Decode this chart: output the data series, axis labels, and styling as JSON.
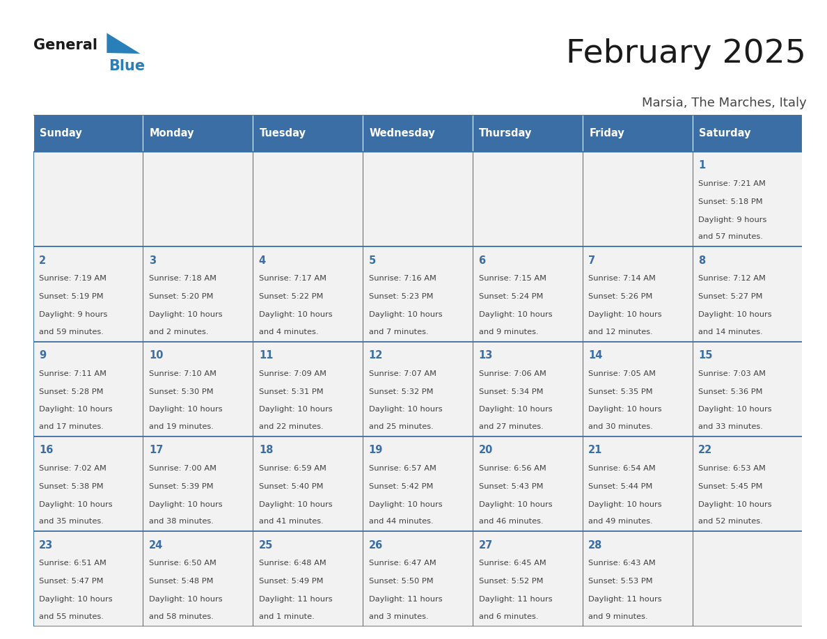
{
  "title": "February 2025",
  "subtitle": "Marsia, The Marches, Italy",
  "days_of_week": [
    "Sunday",
    "Monday",
    "Tuesday",
    "Wednesday",
    "Thursday",
    "Friday",
    "Saturday"
  ],
  "header_bg": "#3a6ea5",
  "header_text": "#ffffff",
  "cell_bg": "#f2f2f2",
  "border_color": "#3a6ea5",
  "day_number_color": "#3a6ea5",
  "info_text_color": "#404040",
  "title_color": "#1a1a1a",
  "subtitle_color": "#444444",
  "logo_text_color": "#1a1a1a",
  "logo_blue_color": "#2980b9",
  "calendar_data": [
    [
      null,
      null,
      null,
      null,
      null,
      null,
      {
        "day": "1",
        "sunrise": "7:21 AM",
        "sunset": "5:18 PM",
        "daylight_line1": "Daylight: 9 hours",
        "daylight_line2": "and 57 minutes."
      }
    ],
    [
      {
        "day": "2",
        "sunrise": "7:19 AM",
        "sunset": "5:19 PM",
        "daylight_line1": "Daylight: 9 hours",
        "daylight_line2": "and 59 minutes."
      },
      {
        "day": "3",
        "sunrise": "7:18 AM",
        "sunset": "5:20 PM",
        "daylight_line1": "Daylight: 10 hours",
        "daylight_line2": "and 2 minutes."
      },
      {
        "day": "4",
        "sunrise": "7:17 AM",
        "sunset": "5:22 PM",
        "daylight_line1": "Daylight: 10 hours",
        "daylight_line2": "and 4 minutes."
      },
      {
        "day": "5",
        "sunrise": "7:16 AM",
        "sunset": "5:23 PM",
        "daylight_line1": "Daylight: 10 hours",
        "daylight_line2": "and 7 minutes."
      },
      {
        "day": "6",
        "sunrise": "7:15 AM",
        "sunset": "5:24 PM",
        "daylight_line1": "Daylight: 10 hours",
        "daylight_line2": "and 9 minutes."
      },
      {
        "day": "7",
        "sunrise": "7:14 AM",
        "sunset": "5:26 PM",
        "daylight_line1": "Daylight: 10 hours",
        "daylight_line2": "and 12 minutes."
      },
      {
        "day": "8",
        "sunrise": "7:12 AM",
        "sunset": "5:27 PM",
        "daylight_line1": "Daylight: 10 hours",
        "daylight_line2": "and 14 minutes."
      }
    ],
    [
      {
        "day": "9",
        "sunrise": "7:11 AM",
        "sunset": "5:28 PM",
        "daylight_line1": "Daylight: 10 hours",
        "daylight_line2": "and 17 minutes."
      },
      {
        "day": "10",
        "sunrise": "7:10 AM",
        "sunset": "5:30 PM",
        "daylight_line1": "Daylight: 10 hours",
        "daylight_line2": "and 19 minutes."
      },
      {
        "day": "11",
        "sunrise": "7:09 AM",
        "sunset": "5:31 PM",
        "daylight_line1": "Daylight: 10 hours",
        "daylight_line2": "and 22 minutes."
      },
      {
        "day": "12",
        "sunrise": "7:07 AM",
        "sunset": "5:32 PM",
        "daylight_line1": "Daylight: 10 hours",
        "daylight_line2": "and 25 minutes."
      },
      {
        "day": "13",
        "sunrise": "7:06 AM",
        "sunset": "5:34 PM",
        "daylight_line1": "Daylight: 10 hours",
        "daylight_line2": "and 27 minutes."
      },
      {
        "day": "14",
        "sunrise": "7:05 AM",
        "sunset": "5:35 PM",
        "daylight_line1": "Daylight: 10 hours",
        "daylight_line2": "and 30 minutes."
      },
      {
        "day": "15",
        "sunrise": "7:03 AM",
        "sunset": "5:36 PM",
        "daylight_line1": "Daylight: 10 hours",
        "daylight_line2": "and 33 minutes."
      }
    ],
    [
      {
        "day": "16",
        "sunrise": "7:02 AM",
        "sunset": "5:38 PM",
        "daylight_line1": "Daylight: 10 hours",
        "daylight_line2": "and 35 minutes."
      },
      {
        "day": "17",
        "sunrise": "7:00 AM",
        "sunset": "5:39 PM",
        "daylight_line1": "Daylight: 10 hours",
        "daylight_line2": "and 38 minutes."
      },
      {
        "day": "18",
        "sunrise": "6:59 AM",
        "sunset": "5:40 PM",
        "daylight_line1": "Daylight: 10 hours",
        "daylight_line2": "and 41 minutes."
      },
      {
        "day": "19",
        "sunrise": "6:57 AM",
        "sunset": "5:42 PM",
        "daylight_line1": "Daylight: 10 hours",
        "daylight_line2": "and 44 minutes."
      },
      {
        "day": "20",
        "sunrise": "6:56 AM",
        "sunset": "5:43 PM",
        "daylight_line1": "Daylight: 10 hours",
        "daylight_line2": "and 46 minutes."
      },
      {
        "day": "21",
        "sunrise": "6:54 AM",
        "sunset": "5:44 PM",
        "daylight_line1": "Daylight: 10 hours",
        "daylight_line2": "and 49 minutes."
      },
      {
        "day": "22",
        "sunrise": "6:53 AM",
        "sunset": "5:45 PM",
        "daylight_line1": "Daylight: 10 hours",
        "daylight_line2": "and 52 minutes."
      }
    ],
    [
      {
        "day": "23",
        "sunrise": "6:51 AM",
        "sunset": "5:47 PM",
        "daylight_line1": "Daylight: 10 hours",
        "daylight_line2": "and 55 minutes."
      },
      {
        "day": "24",
        "sunrise": "6:50 AM",
        "sunset": "5:48 PM",
        "daylight_line1": "Daylight: 10 hours",
        "daylight_line2": "and 58 minutes."
      },
      {
        "day": "25",
        "sunrise": "6:48 AM",
        "sunset": "5:49 PM",
        "daylight_line1": "Daylight: 11 hours",
        "daylight_line2": "and 1 minute."
      },
      {
        "day": "26",
        "sunrise": "6:47 AM",
        "sunset": "5:50 PM",
        "daylight_line1": "Daylight: 11 hours",
        "daylight_line2": "and 3 minutes."
      },
      {
        "day": "27",
        "sunrise": "6:45 AM",
        "sunset": "5:52 PM",
        "daylight_line1": "Daylight: 11 hours",
        "daylight_line2": "and 6 minutes."
      },
      {
        "day": "28",
        "sunrise": "6:43 AM",
        "sunset": "5:53 PM",
        "daylight_line1": "Daylight: 11 hours",
        "daylight_line2": "and 9 minutes."
      },
      null
    ]
  ]
}
